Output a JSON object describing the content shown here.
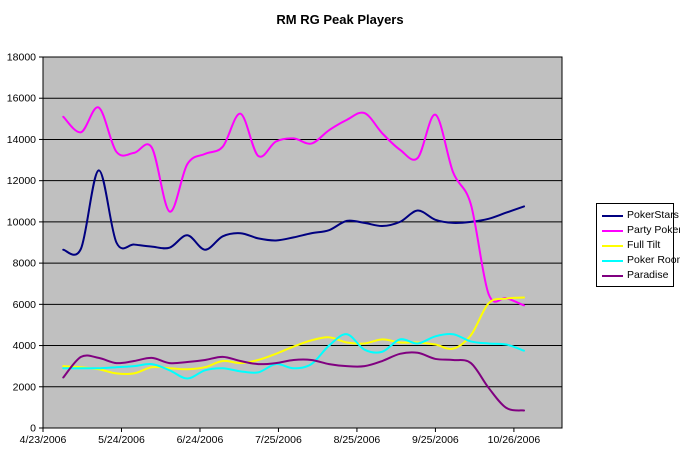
{
  "chart_data": {
    "type": "line",
    "title": "RM RG Peak Players",
    "plot_background": "#c0c0c0",
    "gridline_color": "#000000",
    "grid": "horizontal",
    "legend_position": "right",
    "y_axis": {
      "min": 0,
      "max": 18000,
      "step": 2000,
      "tick_labels": [
        "0",
        "2000",
        "4000",
        "6000",
        "8000",
        "10000",
        "12000",
        "14000",
        "16000",
        "18000"
      ]
    },
    "x_axis": {
      "tick_labels": [
        "4/23/2006",
        "5/24/2006",
        "6/24/2006",
        "7/25/2006",
        "8/25/2006",
        "9/25/2006",
        "10/26/2006"
      ],
      "tick_days": [
        0,
        31,
        62,
        93,
        124,
        155,
        186
      ],
      "domain_days": [
        0,
        205
      ]
    },
    "point_dates": [
      "5/1/2006",
      "5/8/2006",
      "5/15/2006",
      "5/22/2006",
      "5/29/2006",
      "6/5/2006",
      "6/12/2006",
      "6/19/2006",
      "6/26/2006",
      "7/3/2006",
      "7/10/2006",
      "7/17/2006",
      "7/24/2006",
      "7/31/2006",
      "8/7/2006",
      "8/14/2006",
      "8/21/2006",
      "8/28/2006",
      "9/4/2006",
      "9/11/2006",
      "9/18/2006",
      "9/25/2006",
      "10/2/2006",
      "10/9/2006",
      "10/16/2006",
      "10/23/2006",
      "10/30/2006"
    ],
    "point_days": [
      8,
      15,
      22,
      29,
      36,
      43,
      50,
      57,
      64,
      71,
      78,
      85,
      92,
      99,
      106,
      113,
      120,
      127,
      134,
      141,
      148,
      155,
      162,
      169,
      176,
      183,
      190
    ],
    "series": [
      {
        "name": "PokerStars",
        "color": "#000080",
        "values": [
          8650,
          8700,
          12500,
          9000,
          8900,
          8800,
          8750,
          9350,
          8650,
          9300,
          9450,
          9200,
          9100,
          9250,
          9450,
          9600,
          10050,
          9950,
          9800,
          10000,
          10550,
          10100,
          9950,
          10000,
          10150,
          10450,
          10750
        ]
      },
      {
        "name": "Party Poker",
        "color": "#ff00ff",
        "values": [
          15100,
          14350,
          15550,
          13400,
          13350,
          13600,
          10500,
          12800,
          13300,
          13650,
          15250,
          13200,
          13900,
          14050,
          13800,
          14450,
          14950,
          15280,
          14300,
          13500,
          13100,
          15200,
          12400,
          10850,
          6500,
          6300,
          5950
        ]
      },
      {
        "name": "Full Tilt",
        "color": "#ffff00",
        "values": [
          3000,
          2950,
          2850,
          2650,
          2650,
          2950,
          2900,
          2850,
          2950,
          3250,
          3150,
          3300,
          3600,
          3950,
          4250,
          4400,
          4150,
          4100,
          4300,
          4150,
          4150,
          4050,
          3850,
          4500,
          6050,
          6280,
          6330
        ]
      },
      {
        "name": "Poker Room",
        "color": "#00ffff",
        "values": [
          2900,
          2900,
          2900,
          2950,
          3000,
          3100,
          2800,
          2400,
          2800,
          2900,
          2750,
          2700,
          3100,
          2900,
          3100,
          4000,
          4550,
          3800,
          3700,
          4300,
          4100,
          4450,
          4550,
          4200,
          4100,
          4050,
          3750
        ]
      },
      {
        "name": "Paradise",
        "color": "#800080",
        "values": [
          2450,
          3450,
          3400,
          3150,
          3250,
          3400,
          3150,
          3200,
          3300,
          3450,
          3250,
          3100,
          3150,
          3300,
          3300,
          3100,
          3000,
          3000,
          3250,
          3600,
          3650,
          3350,
          3300,
          3150,
          1950,
          975,
          850
        ]
      }
    ]
  }
}
